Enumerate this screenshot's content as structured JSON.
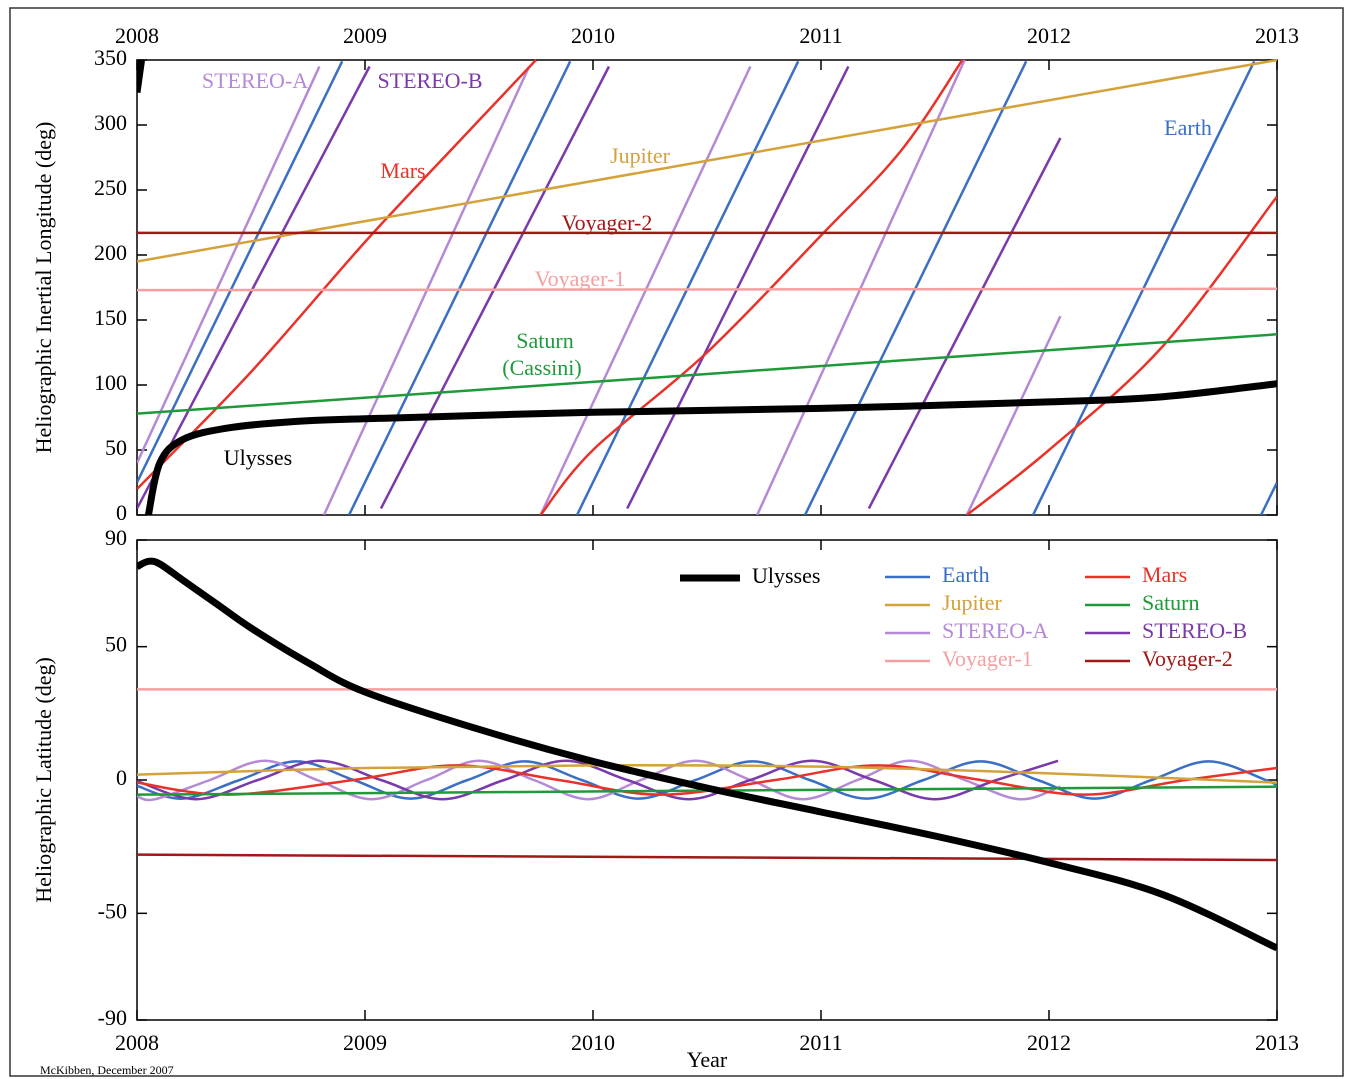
{
  "chart_data": [
    {
      "type": "line",
      "ylabel": "Heliographic Inertial Longitude (deg)",
      "xlim": [
        2008,
        2013
      ],
      "xticks": [
        2008,
        2009,
        2010,
        2011,
        2012,
        2013
      ],
      "xtick_labels": "top",
      "ylim": [
        0,
        350
      ],
      "yticks": [
        0,
        50,
        100,
        150,
        200,
        250,
        300,
        350
      ],
      "annotations": [
        "(Cassini)"
      ],
      "series": [
        {
          "name": "Earth",
          "color": "#3a6fc4",
          "x": [
            2008.0,
            2008.9,
            2008.915,
            2008.93,
            2009.9,
            2009.915,
            2009.93,
            2010.9,
            2010.915,
            2010.93,
            2011.9,
            2011.915,
            2011.93,
            2012.9,
            2012.915,
            2012.93,
            2013.0
          ],
          "values": [
            25,
            349,
            null,
            0,
            349,
            null,
            0,
            349,
            null,
            0,
            349,
            null,
            0,
            349,
            null,
            0,
            25
          ]
        },
        {
          "name": "STEREO-A",
          "color": "#b48ad6",
          "x": [
            2008.0,
            2008.8,
            2008.81,
            2008.82,
            2009.72,
            2009.745,
            2009.77,
            2010.69,
            2010.705,
            2010.72,
            2011.63,
            2011.635,
            2011.64,
            2012.05
          ],
          "values": [
            40,
            345,
            null,
            0,
            345,
            null,
            0,
            345,
            null,
            0,
            350,
            null,
            0,
            153
          ]
        },
        {
          "name": "STEREO-B",
          "color": "#7a3aaa",
          "x": [
            2008.0,
            2009.02,
            2009.045,
            2009.07,
            2010.07,
            2010.11,
            2010.15,
            2011.12,
            2011.165,
            2011.21,
            2012.05
          ],
          "values": [
            5,
            345,
            null,
            5,
            345,
            null,
            5,
            345,
            null,
            5,
            290
          ]
        },
        {
          "name": "Mars",
          "color": "#e8322a",
          "x": [
            2008.0,
            2008.5,
            2009.0,
            2009.4,
            2009.75,
            2009.76,
            2009.77,
            2010.0,
            2010.5,
            2011.0,
            2011.35,
            2011.62,
            2011.63,
            2011.64,
            2012.0,
            2012.5,
            2013.0
          ],
          "values": [
            20,
            110,
            210,
            285,
            350,
            null,
            0,
            50,
            125,
            215,
            280,
            350,
            null,
            0,
            50,
            130,
            245
          ]
        },
        {
          "name": "Jupiter",
          "color": "#d4a23a",
          "x": [
            2008.0,
            2013.0
          ],
          "values": [
            195,
            350
          ]
        },
        {
          "name": "Saturn",
          "color": "#1f9a3a",
          "x": [
            2008.0,
            2013.0
          ],
          "values": [
            78,
            139
          ]
        },
        {
          "name": "Voyager-1",
          "color": "#f4a0a0",
          "x": [
            2008.0,
            2013.0
          ],
          "values": [
            173,
            174
          ]
        },
        {
          "name": "Voyager-2",
          "color": "#a01818",
          "x": [
            2008.0,
            2013.0
          ],
          "values": [
            217,
            217
          ]
        },
        {
          "name": "Ulysses",
          "color": "#000000",
          "x": [
            2008.0,
            2008.02,
            2008.035,
            2008.05,
            2008.1,
            2008.2,
            2008.4,
            2008.7,
            2009.0,
            2010.0,
            2011.0,
            2012.0,
            2012.5,
            2013.0
          ],
          "values": [
            325,
            350,
            null,
            0,
            40,
            58,
            67,
            72,
            74,
            79,
            82,
            87,
            91,
            101
          ]
        }
      ]
    },
    {
      "type": "line",
      "xlabel": "Year",
      "ylabel": "Heliographic Latitude (deg)",
      "xlim": [
        2008,
        2013
      ],
      "xticks": [
        2008,
        2009,
        2010,
        2011,
        2012,
        2013
      ],
      "xtick_labels": "bottom",
      "ylim": [
        -90,
        90
      ],
      "yticks": [
        -90,
        -50,
        0,
        50,
        90
      ],
      "legend": "top-right",
      "series": [
        {
          "name": "Earth",
          "color": "#3a6fc4",
          "x": [
            2008.0,
            2008.2,
            2008.45,
            2008.7,
            2008.95,
            2009.2,
            2009.45,
            2009.7,
            2009.95,
            2010.2,
            2010.45,
            2010.7,
            2010.95,
            2011.2,
            2011.45,
            2011.7,
            2011.95,
            2012.2,
            2012.45,
            2012.7,
            2012.95,
            2013.0
          ],
          "values": [
            -2.2,
            -7,
            0,
            7,
            0,
            -7,
            0,
            7,
            0,
            -7,
            0,
            7,
            0,
            -7,
            0,
            7,
            0,
            -7,
            0,
            7,
            0,
            -2.2
          ]
        },
        {
          "name": "STEREO-A",
          "color": "#b48ad6",
          "x": [
            2008.0,
            2008.08,
            2008.32,
            2008.56,
            2008.79,
            2009.03,
            2009.27,
            2009.5,
            2009.74,
            2009.98,
            2010.21,
            2010.45,
            2010.69,
            2010.92,
            2011.16,
            2011.39,
            2011.63,
            2011.87,
            2012.05
          ],
          "values": [
            -6.1,
            -7.2,
            0,
            7.2,
            0,
            -7.2,
            0,
            7.2,
            0,
            -7.2,
            0,
            7.2,
            0,
            -7.2,
            0,
            7.2,
            0,
            -7.2,
            -2.5
          ]
        },
        {
          "name": "STEREO-B",
          "color": "#7a3aaa",
          "x": [
            2008.0,
            2008.26,
            2008.53,
            2008.8,
            2009.07,
            2009.34,
            2009.61,
            2009.88,
            2010.15,
            2010.42,
            2010.69,
            2010.96,
            2011.23,
            2011.5,
            2011.77,
            2012.04
          ],
          "values": [
            -0.4,
            -7.2,
            0,
            7.2,
            0,
            -7.2,
            0,
            7.2,
            0,
            -7.2,
            0,
            7.2,
            0,
            -7.2,
            0,
            7.2
          ]
        },
        {
          "name": "Mars",
          "color": "#e8322a",
          "x": [
            2008.0,
            2008.4,
            2008.95,
            2009.4,
            2009.85,
            2010.3,
            2010.8,
            2011.25,
            2011.7,
            2012.15,
            2012.6,
            2013.0
          ],
          "values": [
            -1,
            -5.5,
            0,
            5.5,
            0,
            -5.5,
            0,
            5.5,
            0,
            -5.5,
            0,
            4.5
          ]
        },
        {
          "name": "Jupiter",
          "color": "#d4a23a",
          "x": [
            2008.0,
            2009.0,
            2010.0,
            2011.0,
            2012.0,
            2013.0
          ],
          "values": [
            2,
            4.5,
            5.5,
            5,
            2.5,
            -1
          ]
        },
        {
          "name": "Saturn",
          "color": "#1f9a3a",
          "x": [
            2008.0,
            2010.5,
            2013.0
          ],
          "values": [
            -5.5,
            -4,
            -2.5
          ]
        },
        {
          "name": "Voyager-1",
          "color": "#f4a0a0",
          "x": [
            2008.0,
            2013.0
          ],
          "values": [
            34,
            34
          ]
        },
        {
          "name": "Voyager-2",
          "color": "#a01818",
          "x": [
            2008.0,
            2013.0
          ],
          "values": [
            -28,
            -30
          ]
        },
        {
          "name": "Ulysses",
          "color": "#000000",
          "x": [
            2008.0,
            2008.05,
            2008.1,
            2008.2,
            2008.35,
            2008.5,
            2008.75,
            2009.0,
            2009.5,
            2010.0,
            2010.5,
            2011.0,
            2011.5,
            2012.0,
            2012.5,
            2013.0
          ],
          "values": [
            80,
            82,
            81,
            75,
            66,
            57,
            44,
            33,
            19,
            7,
            -3,
            -12,
            -21,
            -31,
            -43,
            -63
          ]
        }
      ]
    }
  ],
  "credit": "McKibben, December 2007"
}
